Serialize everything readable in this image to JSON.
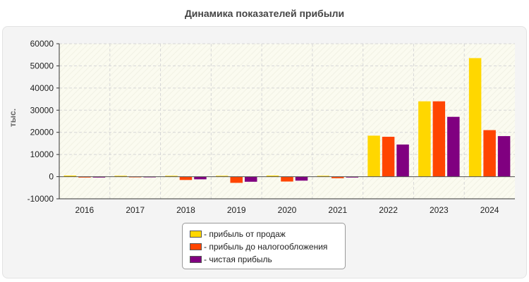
{
  "chart_data": {
    "type": "bar",
    "title": "Динамика показателей прибыли",
    "ylabel": "тыс.",
    "xlabel": "",
    "categories": [
      "2016",
      "2017",
      "2018",
      "2019",
      "2020",
      "2021",
      "2022",
      "2023",
      "2024"
    ],
    "ylim": [
      -10000,
      60000
    ],
    "yticks": [
      -10000,
      0,
      10000,
      20000,
      30000,
      40000,
      50000,
      60000
    ],
    "grid": true,
    "legend_position": "bottom-center",
    "series": [
      {
        "name": "- прибыль от продаж",
        "color": "#ffd700",
        "values": [
          500,
          400,
          400,
          400,
          500,
          400,
          18500,
          34000,
          53500
        ]
      },
      {
        "name": "- прибыль до налогообложения",
        "color": "#ff4500",
        "values": [
          -400,
          -200,
          -1500,
          -2800,
          -2200,
          -700,
          18000,
          34000,
          21000
        ]
      },
      {
        "name": "- чистая прибыль",
        "color": "#800080",
        "values": [
          -400,
          -150,
          -1200,
          -2300,
          -1800,
          -400,
          14500,
          27000,
          18300
        ]
      }
    ]
  }
}
